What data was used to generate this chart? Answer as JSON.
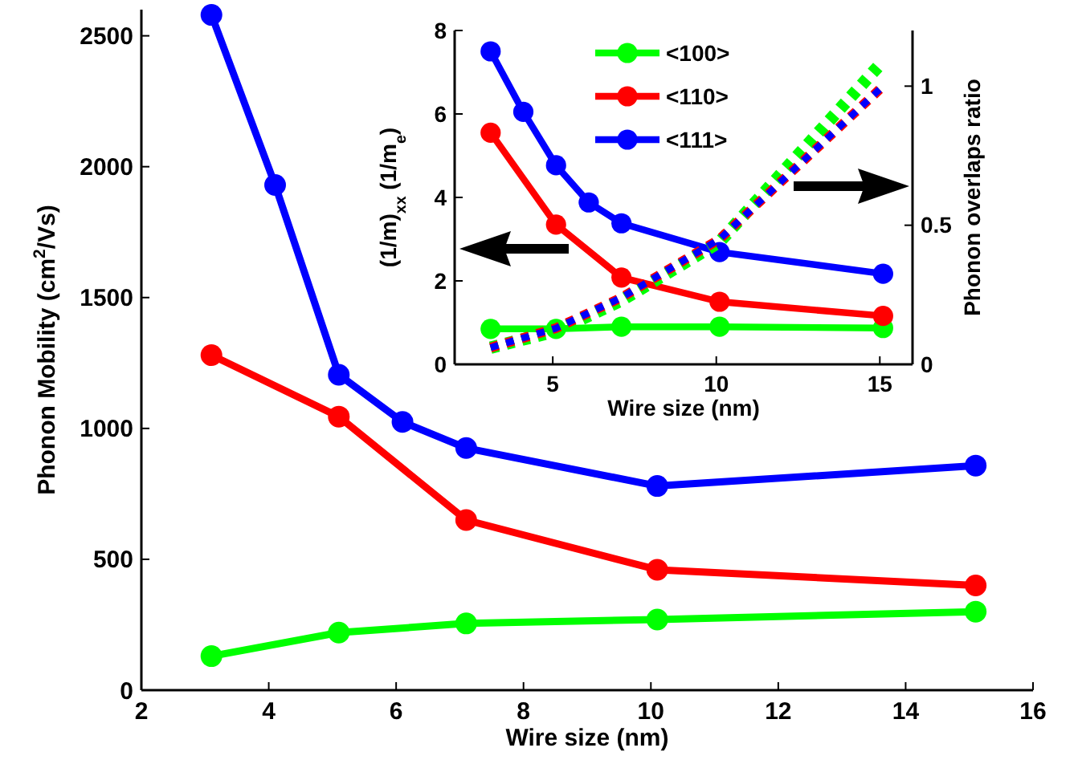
{
  "chart_data": [
    {
      "type": "line",
      "xlabel": "Wire size (nm)",
      "ylabel": "Phonon Mobility  (cm$^{2}$/Vs)",
      "xlim": [
        2,
        16
      ],
      "xticks": [
        2,
        4,
        6,
        8,
        10,
        12,
        14,
        16
      ],
      "ylim": [
        0,
        2600
      ],
      "yticks": [
        0,
        500,
        1000,
        1500,
        2000,
        2500
      ],
      "marker": "circle",
      "line_style": "solid",
      "grid": false,
      "legend": false,
      "series": [
        {
          "color": "#00ff00",
          "x": [
            3.1,
            5.1,
            7.1,
            10.1,
            15.1
          ],
          "values": [
            130,
            220,
            255,
            270,
            300
          ]
        },
        {
          "color": "#ff0000",
          "x": [
            3.1,
            5.1,
            7.1,
            10.1,
            15.1
          ],
          "values": [
            1280,
            1045,
            650,
            460,
            400
          ]
        },
        {
          "color": "#0000ff",
          "x": [
            3.1,
            4.1,
            5.1,
            6.1,
            7.1,
            10.1,
            15.1
          ],
          "values": [
            2580,
            1930,
            1205,
            1025,
            925,
            780,
            858
          ]
        }
      ]
    },
    {
      "type": "line",
      "xlabel": "Wire size (nm)",
      "ylabel": "(1/m)$_{xx}$ (1/m$_{e}$)",
      "y2label": "Phonon overlaps ratio",
      "xlim": [
        2,
        16
      ],
      "xticks": [
        5,
        10,
        15
      ],
      "ylim": [
        0,
        8
      ],
      "yticks": [
        0,
        2,
        4,
        6,
        8
      ],
      "y2lim": [
        0,
        1.2
      ],
      "y2ticks": [
        0,
        0.5,
        1
      ],
      "marker": "circle",
      "line_style": "solid",
      "grid": false,
      "legend": "top",
      "tick_labels": "xy",
      "series": [
        {
          "name": "<100>",
          "color": "#00ff00",
          "x": [
            3.1,
            5.1,
            7.1,
            10.1,
            15.1
          ],
          "values": [
            0.85,
            0.85,
            0.9,
            0.9,
            0.87
          ]
        },
        {
          "name": "<110>",
          "color": "#ff0000",
          "x": [
            3.1,
            5.1,
            7.1,
            10.1,
            15.1
          ],
          "values": [
            5.55,
            3.35,
            2.08,
            1.5,
            1.16
          ]
        },
        {
          "name": "<111>",
          "color": "#0000ff",
          "x": [
            3.1,
            4.1,
            5.1,
            6.1,
            7.1,
            10.1,
            15.1
          ],
          "values": [
            7.5,
            6.05,
            4.77,
            3.88,
            3.38,
            2.69,
            2.17
          ]
        },
        {
          "color": "#00ff00",
          "axis": "y2",
          "marker": "none",
          "line_style": "dotted",
          "x": [
            3.1,
            5.1,
            7.1,
            10.1,
            15.1
          ],
          "values": [
            0.06,
            0.12,
            0.23,
            0.44,
            1.09
          ]
        },
        {
          "color": "#ff0000",
          "axis": "y2",
          "marker": "none",
          "line_style": "dotted",
          "x": [
            3.1,
            5.1,
            7.1,
            10.1,
            15.1
          ],
          "values": [
            0.06,
            0.13,
            0.24,
            0.45,
            1.0
          ]
        },
        {
          "color": "#0000ff",
          "axis": "y2",
          "marker": "none",
          "line_style": "dotted",
          "x": [
            3.1,
            5.1,
            7.1,
            10.1,
            15.1
          ],
          "values": [
            0.06,
            0.13,
            0.24,
            0.45,
            1.0
          ]
        }
      ]
    }
  ]
}
